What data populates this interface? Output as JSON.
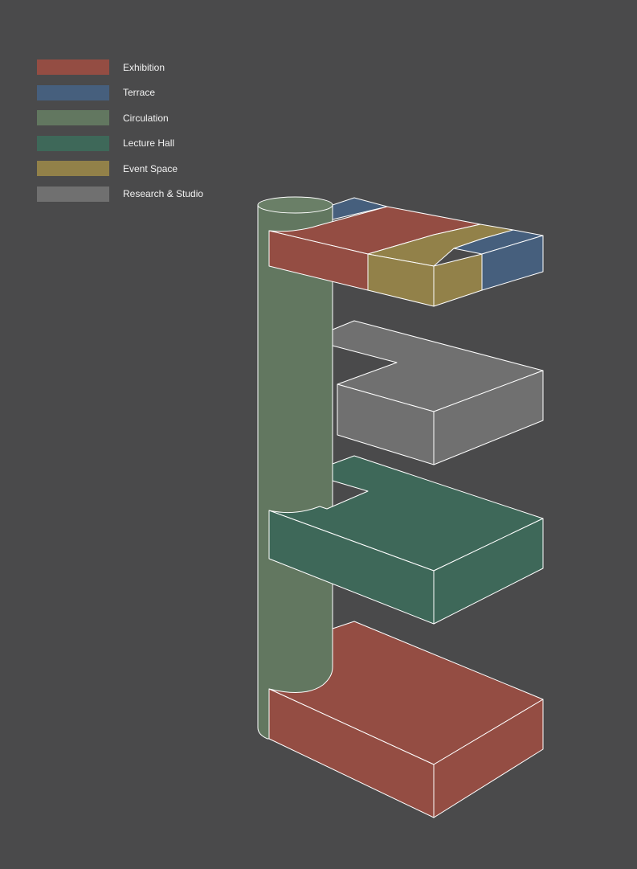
{
  "legend": {
    "items": [
      {
        "label": "Exhibition",
        "color": "#944d43"
      },
      {
        "label": "Terrace",
        "color": "#465f7d"
      },
      {
        "label": "Circulation",
        "color": "#627760"
      },
      {
        "label": "Lecture Hall",
        "color": "#3e6859"
      },
      {
        "label": "Event Space",
        "color": "#928149"
      },
      {
        "label": "Research & Studio",
        "color": "#707070"
      }
    ]
  },
  "colors": {
    "background": "#4a4a4b",
    "outline": "#ffffff",
    "exhibition_side": "#944d43",
    "circulation_top": "#6a7f67"
  }
}
